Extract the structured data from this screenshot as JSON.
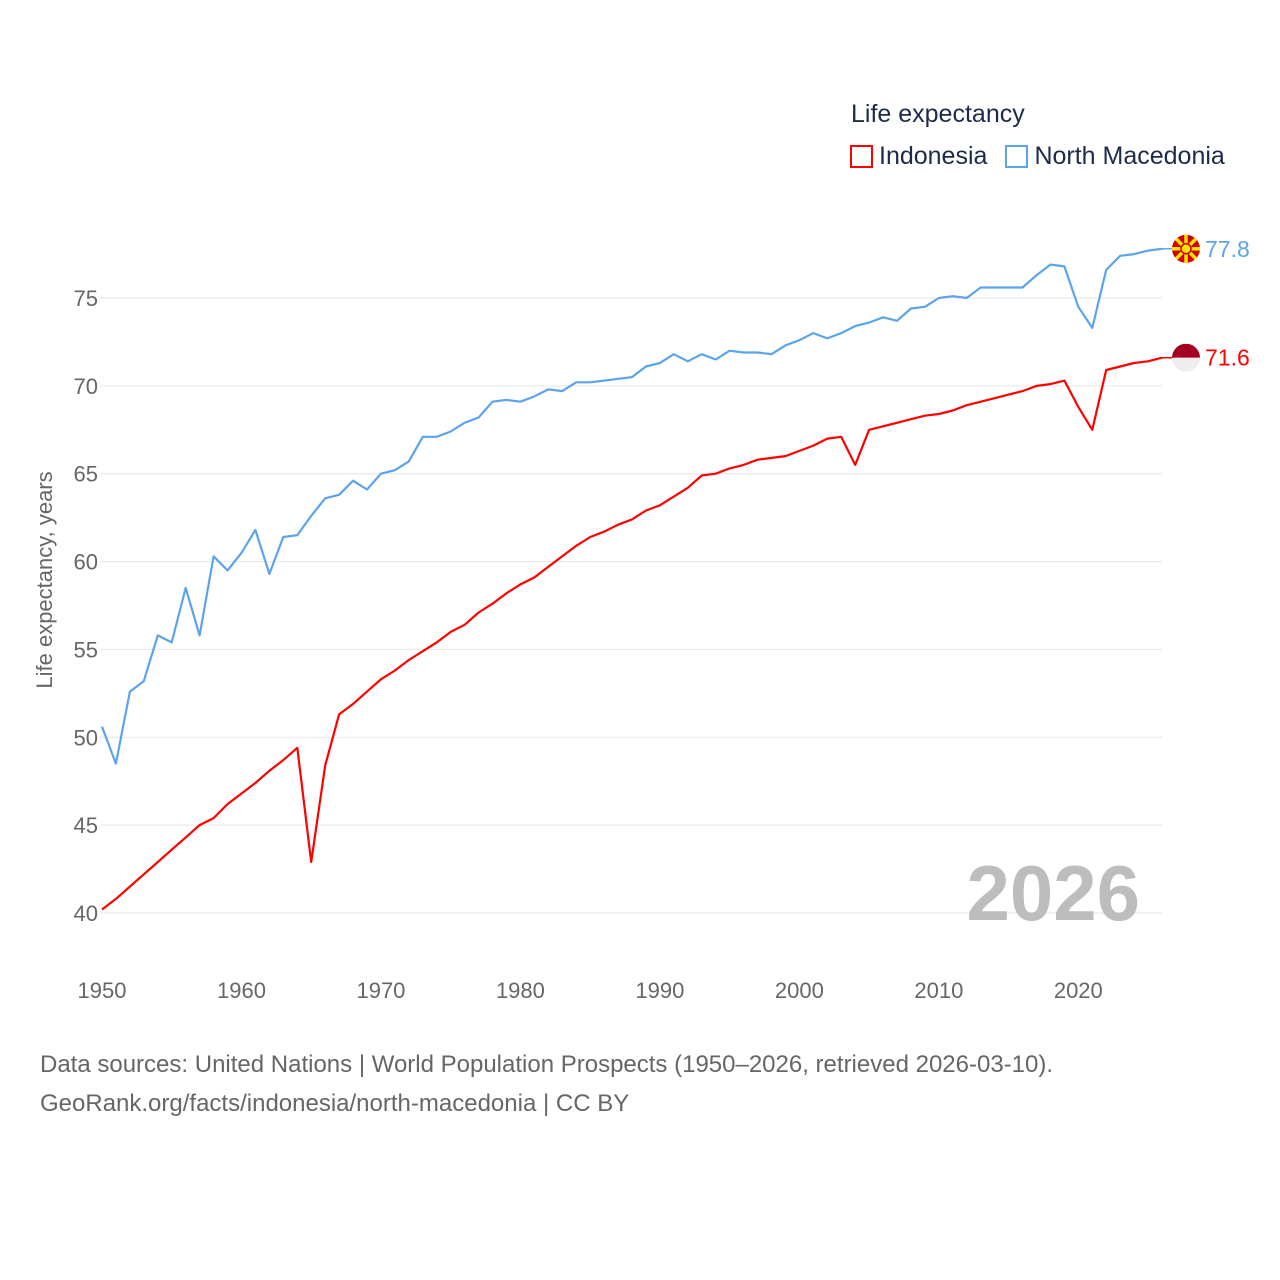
{
  "chart_data": {
    "type": "line",
    "title": "Life expectancy",
    "ylabel": "Life expectancy, years",
    "xlabel": "",
    "xlim": [
      1950,
      2026
    ],
    "ylim": [
      38,
      79
    ],
    "yticks": [
      40,
      45,
      50,
      55,
      60,
      65,
      70,
      75
    ],
    "xticks": [
      1950,
      1960,
      1970,
      1980,
      1990,
      2000,
      2010,
      2020
    ],
    "grid": true,
    "legend_position": "top-right",
    "watermark_year": "2026",
    "x": [
      1950,
      1951,
      1952,
      1953,
      1954,
      1955,
      1956,
      1957,
      1958,
      1959,
      1960,
      1961,
      1962,
      1963,
      1964,
      1965,
      1966,
      1967,
      1968,
      1969,
      1970,
      1971,
      1972,
      1973,
      1974,
      1975,
      1976,
      1977,
      1978,
      1979,
      1980,
      1981,
      1982,
      1983,
      1984,
      1985,
      1986,
      1987,
      1988,
      1989,
      1990,
      1991,
      1992,
      1993,
      1994,
      1995,
      1996,
      1997,
      1998,
      1999,
      2000,
      2001,
      2002,
      2003,
      2004,
      2005,
      2006,
      2007,
      2008,
      2009,
      2010,
      2011,
      2012,
      2013,
      2014,
      2015,
      2016,
      2017,
      2018,
      2019,
      2020,
      2021,
      2022,
      2023,
      2024,
      2025,
      2026
    ],
    "series": [
      {
        "name": "Indonesia",
        "color": "#ff0000",
        "end_label": "71.6",
        "flag": "indonesia-flag",
        "values": [
          40.2,
          40.8,
          41.5,
          42.2,
          42.9,
          43.6,
          44.3,
          45.0,
          45.4,
          46.2,
          46.8,
          47.4,
          48.1,
          48.7,
          49.4,
          42.9,
          48.4,
          51.3,
          51.9,
          52.6,
          53.3,
          53.8,
          54.4,
          54.9,
          55.4,
          56.0,
          56.4,
          57.1,
          57.6,
          58.2,
          58.7,
          59.1,
          59.7,
          60.3,
          60.9,
          61.4,
          61.7,
          62.1,
          62.4,
          62.9,
          63.2,
          63.7,
          64.2,
          64.9,
          65.0,
          65.3,
          65.5,
          65.8,
          65.9,
          66.0,
          66.3,
          66.6,
          67.0,
          67.1,
          65.5,
          67.5,
          67.7,
          67.9,
          68.1,
          68.3,
          68.4,
          68.6,
          68.9,
          69.1,
          69.3,
          69.5,
          69.7,
          70.0,
          70.1,
          70.3,
          68.8,
          67.5,
          70.9,
          71.1,
          71.3,
          71.4,
          71.6
        ]
      },
      {
        "name": "North Macedonia",
        "color": "#5ba4ec",
        "end_label": "77.8",
        "flag": "north-macedonia-flag",
        "values": [
          50.6,
          48.5,
          52.6,
          53.2,
          55.8,
          55.4,
          58.5,
          55.8,
          60.3,
          59.5,
          60.5,
          61.8,
          59.3,
          61.4,
          61.5,
          62.6,
          63.6,
          63.8,
          64.6,
          64.1,
          65.0,
          65.2,
          65.7,
          67.1,
          67.1,
          67.4,
          67.9,
          68.2,
          69.1,
          69.2,
          69.1,
          69.4,
          69.8,
          69.7,
          70.2,
          70.2,
          70.3,
          70.4,
          70.5,
          71.1,
          71.3,
          71.8,
          71.4,
          71.8,
          71.5,
          72.0,
          71.9,
          71.9,
          71.8,
          72.3,
          72.6,
          73.0,
          72.7,
          73.0,
          73.4,
          73.6,
          73.9,
          73.7,
          74.4,
          74.5,
          75.0,
          75.1,
          75.0,
          75.6,
          75.6,
          75.6,
          75.6,
          76.3,
          76.9,
          76.8,
          74.5,
          73.3,
          76.6,
          77.4,
          77.5,
          77.7,
          77.8
        ]
      }
    ]
  },
  "source": {
    "line1": "Data sources: United Nations | World Population Prospects (1950–2026, retrieved 2026-03-10).",
    "line2": "GeoRank.org/facts/indonesia/north-macedonia | CC BY"
  }
}
